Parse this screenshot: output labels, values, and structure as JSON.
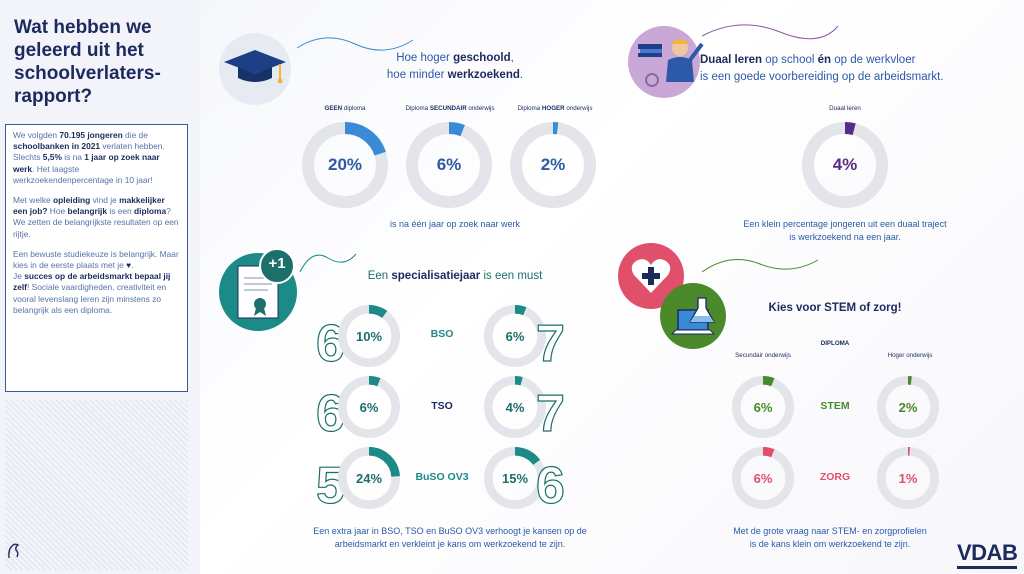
{
  "sidebar": {
    "title": "Wat hebben we geleerd uit het schoolverlaters-rapport?",
    "p1_a": "We volgden ",
    "p1_num": "70.195 jongeren",
    "p1_b": " die de ",
    "p1_c": "schoolbanken in 2021",
    "p1_d": " verlaten hebben. Slechts ",
    "p1_e": "5,5%",
    "p1_f": " is na ",
    "p1_g": "1 jaar op zoek naar werk",
    "p1_h": ". Het laagste werkzoekendenpercentage in 10 jaar!",
    "p2_a": "Met welke ",
    "p2_b": "opleiding",
    "p2_c": " vind je ",
    "p2_d": "makkelijker een job?",
    "p2_e": " Hoe ",
    "p2_f": "belangrijk",
    "p2_g": " is een ",
    "p2_h": "diploma",
    "p2_i": "? We zetten de belangrijkste resultaten op een rijtje.",
    "p3_a": "Een bewuste studiekeuze is belangrijk. Maar kies in de eerste plaats met je ",
    "p3_heart": "♥",
    "p3_b": ".",
    "p3_c": "Je ",
    "p3_d": "succes op de arbeidsmarkt bepaal jij zelf",
    "p3_e": "! Sociale vaardigheden, creativiteit en vooral levenslang leren zijn minstens zo belangrijk als een diploma."
  },
  "section1": {
    "heading_a": "Hoe hoger ",
    "heading_b": "geschoold",
    "heading_c": ",",
    "heading_d": "hoe minder ",
    "heading_e": "werkzoekend",
    "heading_f": ".",
    "caption": "is na één jaar op zoek naar werk",
    "donuts": [
      {
        "label_bold": "GEEN",
        "label_rest": " diploma",
        "value": 20,
        "text": "20%"
      },
      {
        "label_pre": "Diploma ",
        "label_bold": "SECUNDAIR",
        "label_rest": " onderwijs",
        "value": 6,
        "text": "6%"
      },
      {
        "label_pre": "Diploma ",
        "label_bold": "HOGER",
        "label_rest": " onderwijs",
        "value": 2,
        "text": "2%"
      }
    ]
  },
  "section2": {
    "heading_a": "Duaal leren",
    "heading_b": " op school ",
    "heading_c": "én",
    "heading_d": " op de werkvloer",
    "heading_e": "is een goede voorbereiding op de arbeidsmarkt.",
    "label": "Duaal leren",
    "value": 4,
    "text": "4%",
    "caption_a": "Een klein percentage jongeren uit een duaal traject",
    "caption_b": "is werkzoekend na een jaar."
  },
  "section3": {
    "badge": "+1",
    "heading_a": "Een ",
    "heading_b": "specialisatiejaar",
    "heading_c": " is een must",
    "rows": [
      {
        "name": "BSO",
        "before": 10,
        "before_text": "10%",
        "after": 6,
        "after_text": "6%",
        "year_before": "6",
        "year_after": "7"
      },
      {
        "name": "TSO",
        "before": 6,
        "before_text": "6%",
        "after": 4,
        "after_text": "4%",
        "year_before": "6",
        "year_after": "7"
      },
      {
        "name": "BuSO OV3",
        "before": 24,
        "before_text": "24%",
        "after": 15,
        "after_text": "15%",
        "year_before": "5",
        "year_after": "6"
      }
    ],
    "caption_a": "Een extra jaar in BSO, TSO en BuSO OV3 verhoogt je kansen op de",
    "caption_b": "arbeidsmarkt en verkleint je kans om werkzoekend te zijn."
  },
  "section4": {
    "heading": "Kies voor STEM of zorg!",
    "col_header": "DIPLOMA",
    "col_left": "Secundair onderwijs",
    "col_right": "Hoger onderwijs",
    "rows": [
      {
        "name": "STEM",
        "secundair": 6,
        "secundair_text": "6%",
        "hoger": 2,
        "hoger_text": "2%"
      },
      {
        "name": "ZORG",
        "secundair": 6,
        "secundair_text": "6%",
        "hoger": 1,
        "hoger_text": "1%"
      }
    ],
    "caption_a": "Met de grote vraag naar STEM- en zorgprofielen",
    "caption_b": "is de kans klein om werkzoekend te zijn."
  },
  "colors": {
    "blue": "#3a8ad8",
    "purple": "#5b2a86",
    "teal": "#1c8a86",
    "green": "#4a8a2a",
    "red": "#e0506a",
    "track": "#e3e5ea"
  },
  "logo": "VDAB"
}
